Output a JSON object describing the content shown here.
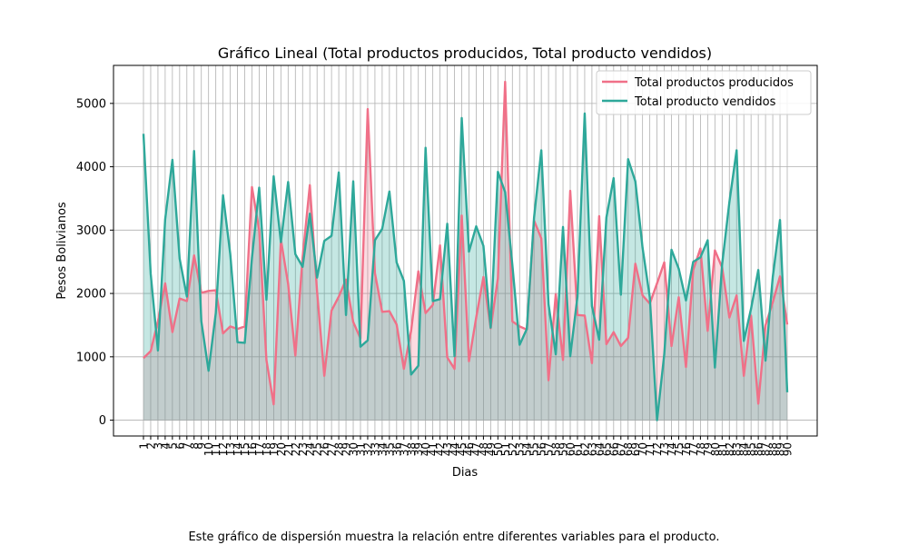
{
  "chart_data": {
    "type": "area",
    "title": "Gráfico Lineal (Total productos producidos, Total producto vendidos)",
    "xlabel": "Dias",
    "ylabel": "Pesos Bolivianos",
    "x": [
      1,
      2,
      3,
      4,
      5,
      6,
      7,
      8,
      9,
      10,
      11,
      12,
      13,
      14,
      15,
      16,
      17,
      18,
      19,
      20,
      21,
      22,
      23,
      24,
      25,
      26,
      27,
      28,
      29,
      30,
      31,
      32,
      33,
      34,
      35,
      36,
      37,
      38,
      39,
      40,
      41,
      42,
      43,
      44,
      45,
      46,
      47,
      48,
      49,
      50,
      51,
      52,
      53,
      54,
      55,
      56,
      57,
      58,
      59,
      60,
      61,
      62,
      63,
      64,
      65,
      66,
      67,
      68,
      69,
      70,
      71,
      72,
      73,
      74,
      75,
      76,
      77,
      78,
      79,
      80,
      81,
      82,
      83,
      84,
      85,
      86,
      87,
      88,
      89,
      90
    ],
    "xlim": [
      1,
      90
    ],
    "ylim": [
      -250,
      5600
    ],
    "yticks": [
      0,
      1000,
      2000,
      3000,
      4000,
      5000
    ],
    "grid": true,
    "legend": "top-right",
    "series": [
      {
        "name": "Total productos producidos",
        "color": "#f07088",
        "values": [
          980,
          1090,
          1560,
          2160,
          1390,
          1920,
          1880,
          2600,
          2010,
          2040,
          2050,
          1370,
          1480,
          1440,
          1480,
          3680,
          3000,
          950,
          250,
          2850,
          2150,
          1020,
          2570,
          3710,
          2030,
          700,
          1730,
          1950,
          2220,
          1550,
          1290,
          4910,
          2320,
          1710,
          1720,
          1510,
          810,
          1410,
          2350,
          1690,
          1820,
          2760,
          990,
          810,
          3230,
          930,
          1620,
          2260,
          1450,
          2240,
          5340,
          1560,
          1480,
          1430,
          3150,
          2870,
          630,
          1990,
          950,
          3620,
          1660,
          1650,
          900,
          3220,
          1200,
          1390,
          1170,
          1300,
          2470,
          1970,
          1840,
          2160,
          2490,
          1170,
          1940,
          840,
          2370,
          2710,
          1410,
          2680,
          2410,
          1620,
          1970,
          700,
          1650,
          260,
          1500,
          1860,
          2270,
          1510
        ]
      },
      {
        "name": "Total producto vendidos",
        "color": "#2ea89a",
        "values": [
          4520,
          2310,
          1100,
          3170,
          4110,
          2550,
          1950,
          4250,
          1560,
          780,
          1690,
          3550,
          2620,
          1230,
          1220,
          2560,
          3670,
          1900,
          3850,
          2810,
          3760,
          2620,
          2420,
          3260,
          2250,
          2830,
          2910,
          3910,
          1660,
          3770,
          1160,
          1260,
          2840,
          3020,
          3610,
          2490,
          2200,
          720,
          860,
          4300,
          1880,
          1910,
          3100,
          1010,
          4770,
          2660,
          3060,
          2750,
          1460,
          3920,
          3600,
          2450,
          1190,
          1440,
          3200,
          4260,
          1830,
          1040,
          3050,
          1010,
          1950,
          4840,
          1800,
          1270,
          3200,
          3820,
          1980,
          4120,
          3770,
          2720,
          1940,
          0,
          1040,
          2690,
          2390,
          1890,
          2500,
          2570,
          2840,
          830,
          2460,
          3440,
          4260,
          1250,
          1760,
          2370,
          940,
          2260,
          3160,
          440
        ]
      }
    ]
  },
  "footer": {
    "caption": "Este gráfico de dispersión muestra la relación entre diferentes variables para el producto."
  }
}
